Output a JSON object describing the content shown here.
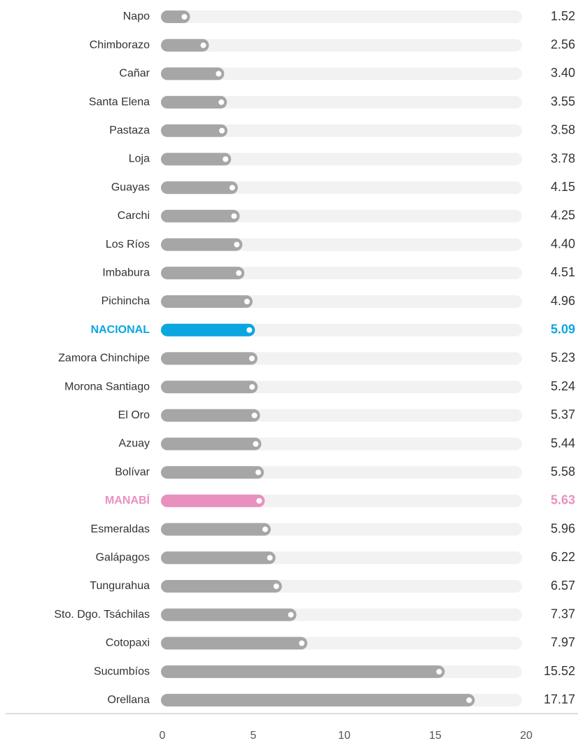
{
  "chart_data": {
    "type": "barh",
    "categories": [
      "Napo",
      "Chimborazo",
      "Cañar",
      "Santa Elena",
      "Pastaza",
      "Loja",
      "Guayas",
      "Carchi",
      "Los Ríos",
      "Imbabura",
      "Pichincha",
      "NACIONAL",
      "Zamora Chinchipe",
      "Morona Santiago",
      "El Oro",
      "Azuay",
      "Bolívar",
      "MANABÍ",
      "Esmeraldas",
      "Galápagos",
      "Tungurahua",
      "Sto. Dgo. Tsáchilas",
      "Cotopaxi",
      "Sucumbíos",
      "Orellana"
    ],
    "values": [
      1.52,
      2.56,
      3.4,
      3.55,
      3.58,
      3.78,
      4.15,
      4.25,
      4.4,
      4.51,
      4.96,
      5.09,
      5.23,
      5.24,
      5.37,
      5.44,
      5.58,
      5.63,
      5.96,
      6.22,
      6.57,
      7.37,
      7.97,
      15.52,
      17.17
    ],
    "value_labels": [
      "1.52",
      "2.56",
      "3.40",
      "3.55",
      "3.58",
      "3.78",
      "4.15",
      "4.25",
      "4.40",
      "4.51",
      "4.96",
      "5.09",
      "5.23",
      "5.24",
      "5.37",
      "5.44",
      "5.58",
      "5.63",
      "5.96",
      "6.22",
      "6.57",
      "7.37",
      "7.97",
      "15.52",
      "17.17"
    ],
    "colors": [
      "#a6a6a6",
      "#a6a6a6",
      "#a6a6a6",
      "#a6a6a6",
      "#a6a6a6",
      "#a6a6a6",
      "#a6a6a6",
      "#a6a6a6",
      "#a6a6a6",
      "#a6a6a6",
      "#a6a6a6",
      "#0aa6e0",
      "#a6a6a6",
      "#a6a6a6",
      "#a6a6a6",
      "#a6a6a6",
      "#a6a6a6",
      "#e891bf",
      "#a6a6a6",
      "#a6a6a6",
      "#a6a6a6",
      "#a6a6a6",
      "#a6a6a6",
      "#a6a6a6",
      "#a6a6a6"
    ],
    "xlim": [
      0,
      20
    ],
    "xticks": [
      0,
      5,
      10,
      15,
      20
    ],
    "grid": false
  }
}
